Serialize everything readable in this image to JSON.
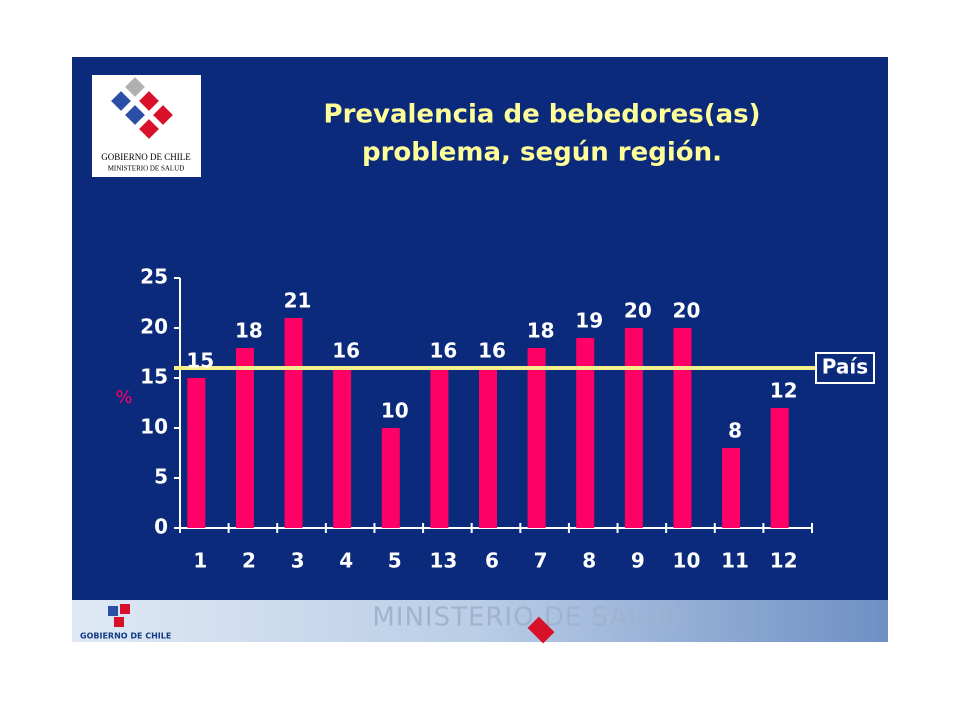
{
  "logo": {
    "line1": "GOBIERNO DE CHILE",
    "line2": "MINISTERIO DE SALUD"
  },
  "footer": {
    "banner": "MINISTERIO DE SALUD",
    "brand": "GOBIERNO DE CHILE"
  },
  "chart_data": {
    "type": "bar",
    "title": [
      "Prevalencia de bebedores(as)",
      "problema, según región."
    ],
    "y_label": "%",
    "categories": [
      "1",
      "2",
      "3",
      "4",
      "5",
      "13",
      "6",
      "7",
      "8",
      "9",
      "10",
      "11",
      "12"
    ],
    "values": [
      15,
      18,
      21,
      16,
      10,
      16,
      16,
      18,
      19,
      20,
      20,
      8,
      12
    ],
    "color": "#ff0066",
    "ylim": [
      0,
      25
    ],
    "yticks": [
      0,
      5,
      10,
      15,
      20,
      25
    ],
    "reference": {
      "value": 16,
      "label": "País",
      "color": "#f5f08c"
    }
  }
}
